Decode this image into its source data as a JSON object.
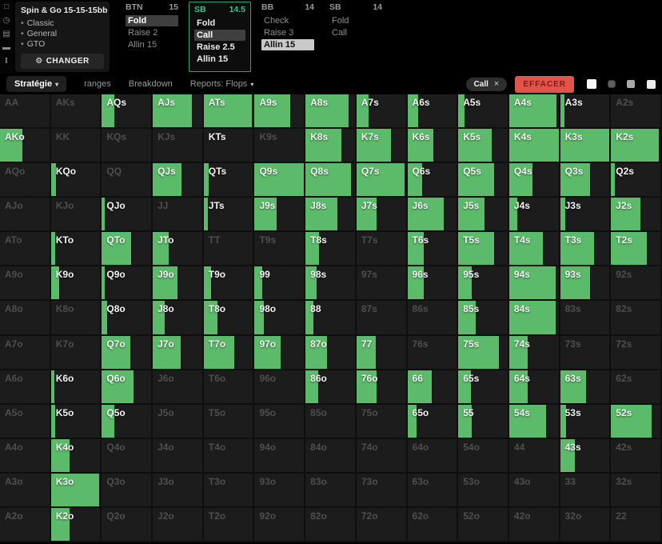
{
  "colors": {
    "green": "#5cbb6b",
    "teal": "#2ba37f",
    "teal_text": "#3ec28f",
    "red": "#e0544a"
  },
  "rail": {
    "icons": [
      {
        "name": "card-icon",
        "glyph": "□"
      },
      {
        "name": "timer-icon",
        "glyph": "◷"
      },
      {
        "name": "save-icon",
        "glyph": "▤"
      },
      {
        "name": "car-icon",
        "glyph": "▬"
      },
      {
        "name": "text-cursor-icon",
        "glyph": "I"
      }
    ]
  },
  "header": {
    "game": {
      "title": "Spin & Go  15-15-15bb",
      "tags": [
        "Classic",
        "General",
        "GTO"
      ],
      "bullet": "•",
      "gear": "⚙",
      "change_label": "CHANGER"
    },
    "columns": [
      {
        "pos": "BTN",
        "stack": "15",
        "active": false,
        "actions": [
          {
            "label": "Fold",
            "style": "selected"
          },
          {
            "label": "Raise 2",
            "style": "dim"
          },
          {
            "label": "Allin 15",
            "style": "dim"
          }
        ]
      },
      {
        "pos": "SB",
        "stack": "14.5",
        "active": true,
        "actions": [
          {
            "label": "Fold",
            "style": "normal"
          },
          {
            "label": "Call",
            "style": "selected"
          },
          {
            "label": "Raise 2.5",
            "style": "normal"
          },
          {
            "label": "Allin 15",
            "style": "normal"
          }
        ]
      },
      {
        "pos": "BB",
        "stack": "14",
        "active": false,
        "actions": [
          {
            "label": "Check",
            "style": "dim"
          },
          {
            "label": "Raise 3",
            "style": "dim"
          },
          {
            "label": "Allin 15",
            "style": "highlight"
          }
        ]
      },
      {
        "pos": "SB",
        "stack": "14",
        "active": false,
        "actions": [
          {
            "label": "Fold",
            "style": "dim"
          },
          {
            "label": "Call",
            "style": "dim"
          }
        ]
      }
    ]
  },
  "toolbar": {
    "tabs": [
      {
        "label": "Stratégie",
        "arrow": "▾",
        "active": true
      },
      {
        "label": "ranges",
        "arrow": "",
        "active": false
      },
      {
        "label": "Breakdown",
        "arrow": "",
        "active": false
      },
      {
        "label": "Reports: Flops",
        "arrow": "▾",
        "active": false
      }
    ],
    "filter_chip": {
      "label": "Call",
      "close": "×"
    },
    "clear_label": "EFFACER",
    "view_buttons": [
      {
        "name": "view-toggle-1",
        "style": "white-lg"
      },
      {
        "name": "view-toggle-2",
        "style": "dim-sm"
      },
      {
        "name": "view-toggle-3",
        "style": "gray-md"
      },
      {
        "name": "view-toggle-4",
        "style": "white-md"
      }
    ]
  },
  "grid": {
    "note": "cells = [hand label, call-frequency fill % of cell width, bright label flag]",
    "cells": [
      [
        [
          "AA",
          0,
          0
        ],
        [
          "AKs",
          0,
          0
        ],
        [
          "AQs",
          25,
          1
        ],
        [
          "AJs",
          80,
          1
        ],
        [
          "ATs",
          97,
          1
        ],
        [
          "A9s",
          72,
          1
        ],
        [
          "A8s",
          88,
          1
        ],
        [
          "A7s",
          25,
          1
        ],
        [
          "A6s",
          22,
          1
        ],
        [
          "A5s",
          12,
          1
        ],
        [
          "A4s",
          95,
          1
        ],
        [
          "A3s",
          8,
          1
        ],
        [
          "A2s",
          0,
          0
        ]
      ],
      [
        [
          "AKo",
          45,
          1
        ],
        [
          "KK",
          0,
          0
        ],
        [
          "KQs",
          0,
          0
        ],
        [
          "KJs",
          0,
          0
        ],
        [
          "KTs",
          0,
          1
        ],
        [
          "K9s",
          0,
          0
        ],
        [
          "K8s",
          72,
          1
        ],
        [
          "K7s",
          70,
          1
        ],
        [
          "K6s",
          52,
          1
        ],
        [
          "K5s",
          68,
          1
        ],
        [
          "K4s",
          100,
          1
        ],
        [
          "K3s",
          100,
          1
        ],
        [
          "K2s",
          97,
          1
        ]
      ],
      [
        [
          "AQo",
          0,
          0
        ],
        [
          "KQo",
          11,
          1
        ],
        [
          "QQ",
          0,
          0
        ],
        [
          "QJs",
          58,
          1
        ],
        [
          "QTs",
          10,
          1
        ],
        [
          "Q9s",
          100,
          1
        ],
        [
          "Q8s",
          92,
          1
        ],
        [
          "Q7s",
          97,
          1
        ],
        [
          "Q6s",
          30,
          1
        ],
        [
          "Q5s",
          73,
          1
        ],
        [
          "Q4s",
          47,
          1
        ],
        [
          "Q3s",
          60,
          1
        ],
        [
          "Q2s",
          8,
          1
        ]
      ],
      [
        [
          "AJo",
          0,
          0
        ],
        [
          "KJo",
          0,
          0
        ],
        [
          "QJo",
          6,
          1
        ],
        [
          "JJ",
          0,
          0
        ],
        [
          "JTs",
          8,
          1
        ],
        [
          "J9s",
          44,
          1
        ],
        [
          "J8s",
          65,
          1
        ],
        [
          "J7s",
          41,
          1
        ],
        [
          "J6s",
          73,
          1
        ],
        [
          "J5s",
          53,
          1
        ],
        [
          "J4s",
          16,
          1
        ],
        [
          "J3s",
          10,
          1
        ],
        [
          "J2s",
          60,
          1
        ]
      ],
      [
        [
          "ATo",
          0,
          0
        ],
        [
          "KTo",
          9,
          1
        ],
        [
          "QTo",
          60,
          1
        ],
        [
          "JTo",
          33,
          1
        ],
        [
          "TT",
          0,
          0
        ],
        [
          "T9s",
          0,
          0
        ],
        [
          "T8s",
          28,
          1
        ],
        [
          "T7s",
          0,
          0
        ],
        [
          "T6s",
          33,
          1
        ],
        [
          "T5s",
          73,
          1
        ],
        [
          "T4s",
          68,
          1
        ],
        [
          "T3s",
          68,
          1
        ],
        [
          "T2s",
          73,
          1
        ]
      ],
      [
        [
          "A9o",
          0,
          0
        ],
        [
          "K9o",
          17,
          1
        ],
        [
          "Q9o",
          6,
          1
        ],
        [
          "J9o",
          50,
          1
        ],
        [
          "T9o",
          15,
          1
        ],
        [
          "99",
          15,
          1
        ],
        [
          "98s",
          23,
          1
        ],
        [
          "97s",
          0,
          0
        ],
        [
          "96s",
          33,
          1
        ],
        [
          "95s",
          27,
          1
        ],
        [
          "94s",
          94,
          1
        ],
        [
          "93s",
          60,
          1
        ],
        [
          "92s",
          0,
          0
        ]
      ],
      [
        [
          "A8o",
          0,
          0
        ],
        [
          "K8o",
          0,
          0
        ],
        [
          "Q8o",
          11,
          1
        ],
        [
          "J8o",
          25,
          1
        ],
        [
          "T8o",
          28,
          1
        ],
        [
          "98o",
          18,
          1
        ],
        [
          "88",
          16,
          1
        ],
        [
          "87s",
          0,
          0
        ],
        [
          "86s",
          0,
          0
        ],
        [
          "85s",
          36,
          1
        ],
        [
          "84s",
          94,
          1
        ],
        [
          "83s",
          0,
          0
        ],
        [
          "82s",
          0,
          0
        ]
      ],
      [
        [
          "A7o",
          0,
          0
        ],
        [
          "K7o",
          0,
          0
        ],
        [
          "Q7o",
          57,
          1
        ],
        [
          "J7o",
          57,
          1
        ],
        [
          "T7o",
          62,
          1
        ],
        [
          "97o",
          53,
          1
        ],
        [
          "87o",
          44,
          1
        ],
        [
          "77",
          39,
          1
        ],
        [
          "76s",
          0,
          0
        ],
        [
          "75s",
          83,
          1
        ],
        [
          "74s",
          37,
          1
        ],
        [
          "73s",
          0,
          0
        ],
        [
          "72s",
          0,
          0
        ]
      ],
      [
        [
          "A6o",
          0,
          0
        ],
        [
          "K6o",
          7,
          1
        ],
        [
          "Q6o",
          65,
          1
        ],
        [
          "J6o",
          0,
          0
        ],
        [
          "T6o",
          0,
          0
        ],
        [
          "96o",
          0,
          0
        ],
        [
          "86o",
          25,
          1
        ],
        [
          "76o",
          41,
          1
        ],
        [
          "66",
          50,
          1
        ],
        [
          "65s",
          25,
          1
        ],
        [
          "64s",
          37,
          1
        ],
        [
          "63s",
          52,
          1
        ],
        [
          "62s",
          0,
          0
        ]
      ],
      [
        [
          "A5o",
          0,
          0
        ],
        [
          "K5o",
          8,
          1
        ],
        [
          "Q5o",
          25,
          1
        ],
        [
          "J5o",
          0,
          0
        ],
        [
          "T5o",
          0,
          0
        ],
        [
          "95o",
          0,
          0
        ],
        [
          "85o",
          0,
          0
        ],
        [
          "75o",
          0,
          0
        ],
        [
          "65o",
          19,
          1
        ],
        [
          "55",
          27,
          1
        ],
        [
          "54s",
          75,
          1
        ],
        [
          "53s",
          12,
          1
        ],
        [
          "52s",
          82,
          1
        ]
      ],
      [
        [
          "A4o",
          0,
          0
        ],
        [
          "K4o",
          37,
          1
        ],
        [
          "Q4o",
          0,
          0
        ],
        [
          "J4o",
          0,
          0
        ],
        [
          "T4o",
          0,
          0
        ],
        [
          "94o",
          0,
          0
        ],
        [
          "84o",
          0,
          0
        ],
        [
          "74o",
          0,
          0
        ],
        [
          "64o",
          0,
          0
        ],
        [
          "54o",
          0,
          0
        ],
        [
          "44",
          0,
          0
        ],
        [
          "43s",
          30,
          1
        ],
        [
          "42s",
          0,
          0
        ]
      ],
      [
        [
          "A3o",
          0,
          0
        ],
        [
          "K3o",
          97,
          1
        ],
        [
          "Q3o",
          0,
          0
        ],
        [
          "J3o",
          0,
          0
        ],
        [
          "T3o",
          0,
          0
        ],
        [
          "93o",
          0,
          0
        ],
        [
          "83o",
          0,
          0
        ],
        [
          "73o",
          0,
          0
        ],
        [
          "63o",
          0,
          0
        ],
        [
          "53o",
          0,
          0
        ],
        [
          "43o",
          0,
          0
        ],
        [
          "33",
          0,
          0
        ],
        [
          "32s",
          0,
          0
        ]
      ],
      [
        [
          "A2o",
          0,
          0
        ],
        [
          "K2o",
          37,
          1
        ],
        [
          "Q2o",
          0,
          0
        ],
        [
          "J2o",
          0,
          0
        ],
        [
          "T2o",
          0,
          0
        ],
        [
          "92o",
          0,
          0
        ],
        [
          "82o",
          0,
          0
        ],
        [
          "72o",
          0,
          0
        ],
        [
          "62o",
          0,
          0
        ],
        [
          "52o",
          0,
          0
        ],
        [
          "42o",
          0,
          0
        ],
        [
          "32o",
          0,
          0
        ],
        [
          "22",
          0,
          0
        ]
      ]
    ]
  }
}
